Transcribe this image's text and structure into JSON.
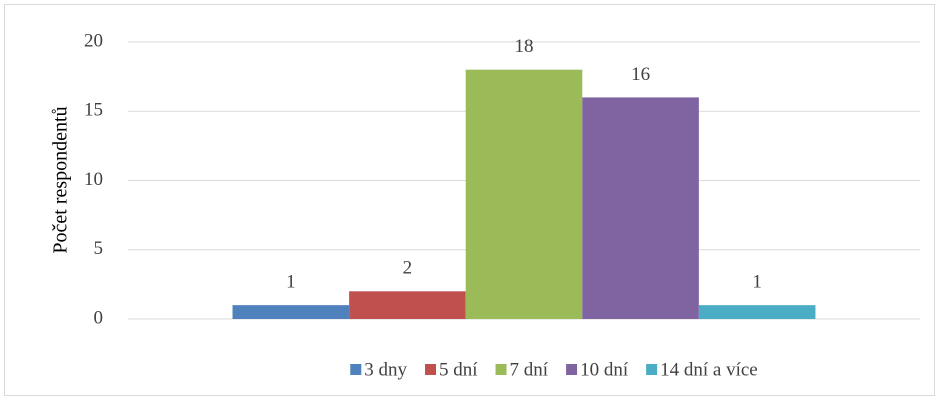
{
  "chart_data": {
    "type": "bar",
    "y_label": "Počet respondentů",
    "categories": [
      null
    ],
    "series": [
      {
        "name": "3 dny",
        "color": "#4f81bd",
        "values": [
          1
        ]
      },
      {
        "name": "5 dní",
        "color": "#c0504d",
        "values": [
          2
        ]
      },
      {
        "name": "7 dní",
        "color": "#9bbb59",
        "values": [
          18
        ]
      },
      {
        "name": "10 dní",
        "color": "#8064a2",
        "values": [
          16
        ]
      },
      {
        "name": "14 dní a více",
        "color": "#4bacc6",
        "values": [
          1
        ]
      }
    ],
    "ylim": [
      0,
      20
    ],
    "yticks": [
      0,
      5,
      10,
      15,
      20
    ],
    "grid": true,
    "legend": "bottom",
    "data_labels": true
  }
}
